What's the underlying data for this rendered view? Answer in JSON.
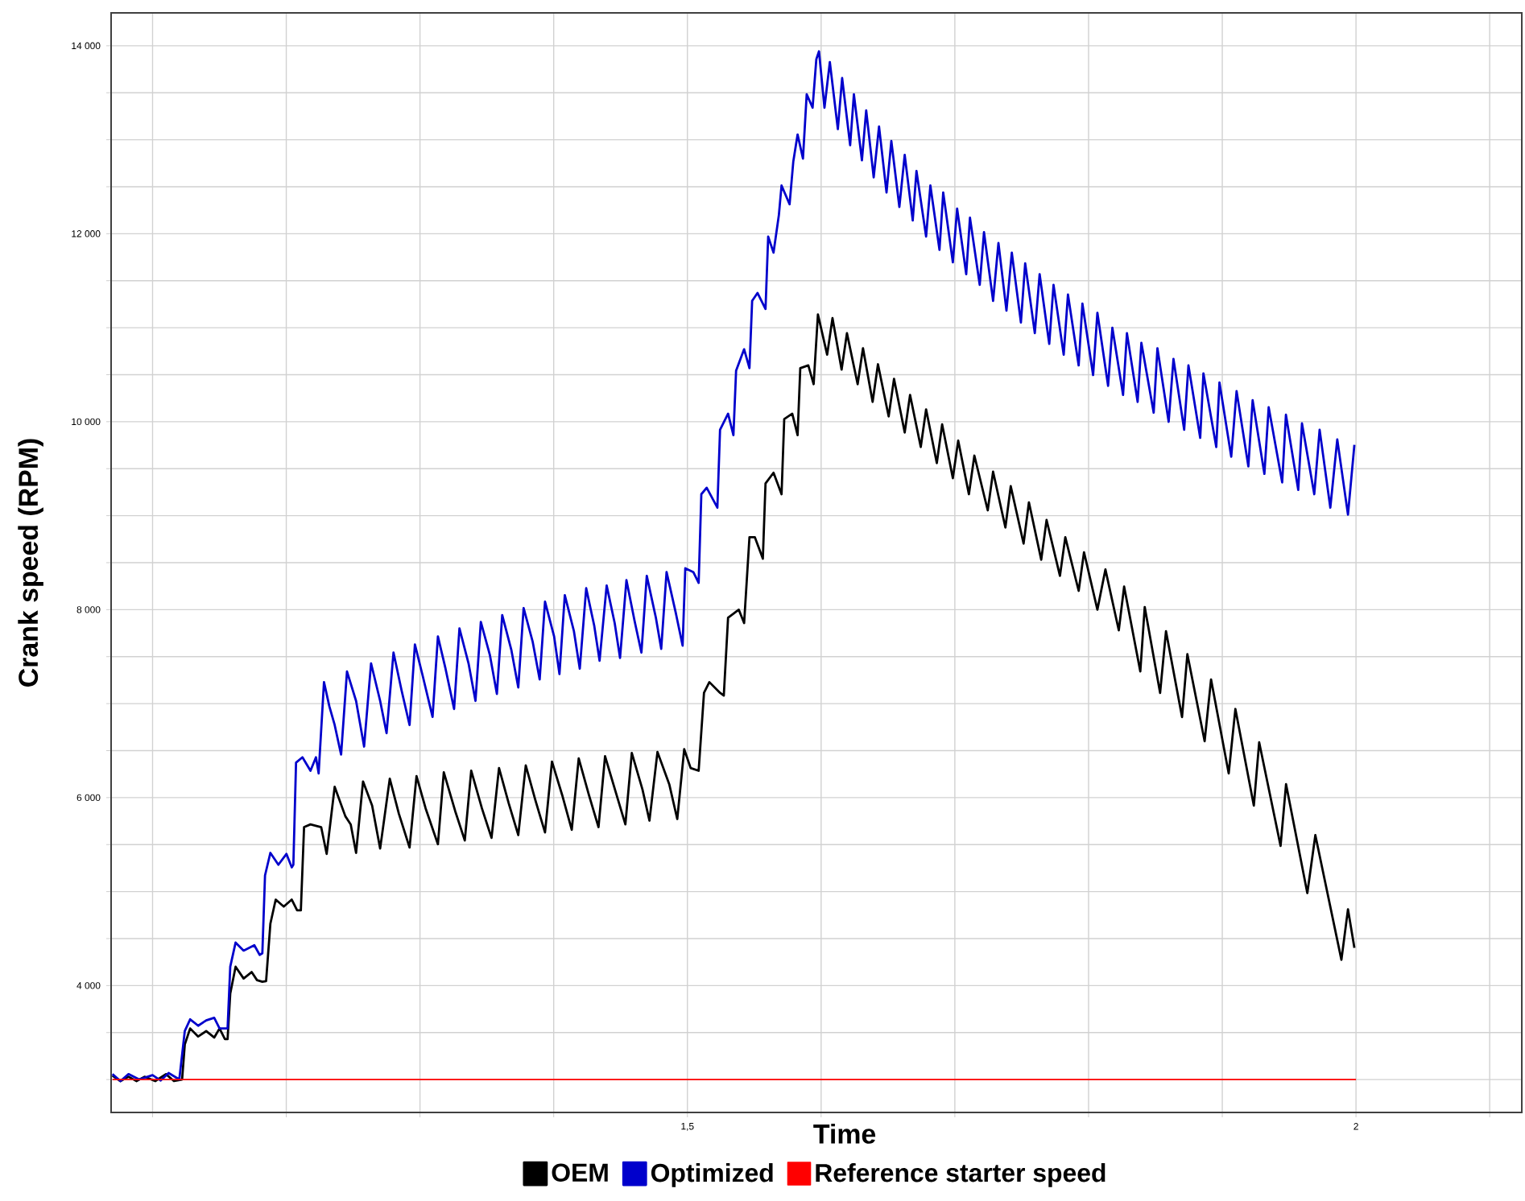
{
  "chart_data": {
    "type": "line",
    "xlabel": "Time",
    "ylabel": "Crank speed (RPM)",
    "grid": true,
    "legend": "bottom",
    "xlim": [
      1.069,
      2.124
    ],
    "ylim": [
      2650,
      14350
    ],
    "xticks": [
      {
        "value": 1.1,
        "label": null
      },
      {
        "value": 1.2,
        "label": null
      },
      {
        "value": 1.3,
        "label": null
      },
      {
        "value": 1.4,
        "label": null
      },
      {
        "value": 1.5,
        "label": "1,5"
      },
      {
        "value": 1.6,
        "label": null
      },
      {
        "value": 1.7,
        "label": null
      },
      {
        "value": 1.8,
        "label": null
      },
      {
        "value": 1.9,
        "label": null
      },
      {
        "value": 2,
        "label": "2"
      },
      {
        "value": 2.1,
        "label": null
      }
    ],
    "yticks": [
      {
        "value": 3000,
        "label": null
      },
      {
        "value": 3500,
        "label": null
      },
      {
        "value": 4000,
        "label": "4 000"
      },
      {
        "value": 4500,
        "label": null
      },
      {
        "value": 5000,
        "label": null
      },
      {
        "value": 5500,
        "label": null
      },
      {
        "value": 6000,
        "label": "6 000"
      },
      {
        "value": 6500,
        "label": null
      },
      {
        "value": 7000,
        "label": null
      },
      {
        "value": 7500,
        "label": null
      },
      {
        "value": 8000,
        "label": "8 000"
      },
      {
        "value": 8500,
        "label": null
      },
      {
        "value": 9000,
        "label": null
      },
      {
        "value": 9500,
        "label": null
      },
      {
        "value": 10000,
        "label": "10 000"
      },
      {
        "value": 10500,
        "label": null
      },
      {
        "value": 11000,
        "label": null
      },
      {
        "value": 11500,
        "label": null
      },
      {
        "value": 12000,
        "label": "12 000"
      },
      {
        "value": 12500,
        "label": null
      },
      {
        "value": 13000,
        "label": null
      },
      {
        "value": 13500,
        "label": null
      },
      {
        "value": 14000,
        "label": "14 000"
      }
    ],
    "series": [
      {
        "name": "OEM",
        "color": "#000000",
        "x": [
          1.07,
          1.076,
          1.082,
          1.088,
          1.094,
          1.102,
          1.11,
          1.116,
          1.1221,
          1.1241,
          1.1281,
          1.1341,
          1.1401,
          1.1461,
          1.1501,
          1.1541,
          1.1561,
          1.1581,
          1.1621,
          1.1681,
          1.1741,
          1.1781,
          1.1821,
          1.1849,
          1.1881,
          1.1921,
          1.1981,
          1.2041,
          1.2081,
          1.2109,
          1.2133,
          1.2181,
          1.2261,
          1.2302,
          1.2362,
          1.2442,
          1.2482,
          1.2522,
          1.2574,
          1.2642,
          1.2702,
          1.2774,
          1.2842,
          1.2922,
          1.2974,
          1.3042,
          1.3134,
          1.3178,
          1.3263,
          1.3335,
          1.3383,
          1.3463,
          1.3535,
          1.3591,
          1.3663,
          1.3735,
          1.3791,
          1.3863,
          1.3935,
          1.3987,
          1.4063,
          1.4135,
          1.4187,
          1.4263,
          1.4335,
          1.4384,
          1.4464,
          1.4536,
          1.4584,
          1.4664,
          1.4716,
          1.4776,
          1.4864,
          1.4924,
          1.4976,
          1.5024,
          1.5084,
          1.5124,
          1.5164,
          1.5244,
          1.5272,
          1.5304,
          1.5384,
          1.5424,
          1.5464,
          1.5504,
          1.5564,
          1.5584,
          1.5644,
          1.5704,
          1.5724,
          1.5784,
          1.5824,
          1.5844,
          1.5904,
          1.5944,
          1.5976,
          1.6045,
          1.6085,
          1.6153,
          1.6193,
          1.6273,
          1.6313,
          1.6385,
          1.6425,
          1.6505,
          1.6545,
          1.6625,
          1.6665,
          1.6745,
          1.6785,
          1.6865,
          1.6905,
          1.6985,
          1.7025,
          1.7105,
          1.7146,
          1.7246,
          1.7286,
          1.7378,
          1.7418,
          1.7514,
          1.7554,
          1.7646,
          1.7686,
          1.7786,
          1.7826,
          1.7926,
          1.7966,
          1.8066,
          1.8126,
          1.8226,
          1.8266,
          1.8387,
          1.842,
          1.8535,
          1.8579,
          1.8699,
          1.8739,
          1.8868,
          1.8916,
          1.9048,
          1.9098,
          1.9236,
          1.9276,
          1.9436,
          1.9477,
          1.9636,
          1.9696,
          1.9891,
          1.994,
          1.9988
        ],
        "values": [
          3041,
          2984,
          3030,
          2984,
          3030,
          2984,
          3058,
          2984,
          3001,
          3373,
          3544,
          3458,
          3516,
          3447,
          3544,
          3430,
          3430,
          3915,
          4201,
          4075,
          4144,
          4058,
          4041,
          4047,
          4658,
          4915,
          4841,
          4915,
          4801,
          4801,
          5686,
          5715,
          5686,
          5401,
          6115,
          5801,
          5715,
          5412,
          6172,
          5915,
          5458,
          6201,
          5829,
          5469,
          6229,
          5886,
          5504,
          6269,
          5858,
          5544,
          6286,
          5886,
          5572,
          6315,
          5943,
          5601,
          6343,
          5972,
          5629,
          6383,
          6029,
          5658,
          6418,
          6029,
          5686,
          6440,
          6058,
          5715,
          6475,
          6086,
          5755,
          6486,
          6143,
          5772,
          6515,
          6315,
          6286,
          7115,
          7229,
          7115,
          7086,
          7914,
          8000,
          7857,
          8771,
          8771,
          8542,
          9342,
          9457,
          9228,
          10028,
          10085,
          9856,
          10570,
          10599,
          10399,
          11142,
          10713,
          11102,
          10554,
          10942,
          10399,
          10782,
          10211,
          10611,
          10056,
          10456,
          9885,
          10285,
          9731,
          10131,
          9559,
          9971,
          9399,
          9799,
          9228,
          9639,
          9057,
          9468,
          8874,
          9314,
          8703,
          9142,
          8531,
          8954,
          8360,
          8771,
          8200,
          8611,
          8000,
          8428,
          7780,
          8245,
          7342,
          8028,
          7114,
          7771,
          6857,
          7526,
          6600,
          7257,
          6257,
          6943,
          5915,
          6588,
          5486,
          6143,
          4984,
          5601,
          4274,
          4812,
          4401
        ]
      },
      {
        "name": "Optimized",
        "color": "#0000cc",
        "x": [
          1.07,
          1.076,
          1.082,
          1.09,
          1.1,
          1.1061,
          1.112,
          1.12,
          1.1241,
          1.1281,
          1.1341,
          1.1401,
          1.1461,
          1.1501,
          1.1561,
          1.1581,
          1.1621,
          1.1681,
          1.1761,
          1.1801,
          1.1821,
          1.1841,
          1.1881,
          1.1941,
          1.2001,
          1.2041,
          1.2053,
          1.2073,
          1.2121,
          1.2181,
          1.2222,
          1.2242,
          1.2282,
          1.2322,
          1.2362,
          1.241,
          1.2454,
          1.2522,
          1.2582,
          1.2634,
          1.2702,
          1.275,
          1.2802,
          1.2862,
          1.2922,
          1.2962,
          1.3022,
          1.3094,
          1.3134,
          1.3191,
          1.3255,
          1.3295,
          1.3363,
          1.3415,
          1.3455,
          1.3523,
          1.3575,
          1.3615,
          1.3683,
          1.3735,
          1.3775,
          1.3843,
          1.3895,
          1.3935,
          1.4003,
          1.4043,
          1.4083,
          1.4151,
          1.4195,
          1.4243,
          1.4303,
          1.4343,
          1.4396,
          1.4456,
          1.4496,
          1.4544,
          1.4604,
          1.4656,
          1.4696,
          1.4764,
          1.4804,
          1.4844,
          1.4912,
          1.4964,
          1.4984,
          1.5044,
          1.5084,
          1.5104,
          1.5144,
          1.5224,
          1.5244,
          1.5304,
          1.5344,
          1.5364,
          1.5424,
          1.5464,
          1.5484,
          1.5524,
          1.5584,
          1.5604,
          1.5644,
          1.5684,
          1.5704,
          1.5764,
          1.5792,
          1.5824,
          1.5864,
          1.5892,
          1.5936,
          1.5964,
          1.5984,
          1.6025,
          1.6065,
          1.6125,
          1.6157,
          1.6217,
          1.6245,
          1.6305,
          1.6337,
          1.6393,
          1.6433,
          1.6489,
          1.6525,
          1.6585,
          1.6625,
          1.6685,
          1.6713,
          1.6785,
          1.6817,
          1.6885,
          1.6913,
          1.6985,
          1.7017,
          1.7085,
          1.7113,
          1.7186,
          1.7218,
          1.7286,
          1.7326,
          1.7386,
          1.7426,
          1.7494,
          1.7526,
          1.7598,
          1.7634,
          1.7706,
          1.7738,
          1.7814,
          1.7846,
          1.7926,
          1.7954,
          1.8034,
          1.8066,
          1.8146,
          1.8178,
          1.8258,
          1.8287,
          1.8367,
          1.8395,
          1.8487,
          1.8515,
          1.8599,
          1.8635,
          1.8715,
          1.8747,
          1.8835,
          1.8859,
          1.8955,
          1.8979,
          1.9067,
          1.9107,
          1.9195,
          1.9227,
          1.9315,
          1.9347,
          1.9448,
          1.9476,
          1.9568,
          1.9596,
          1.9688,
          1.9728,
          1.9808,
          1.986,
          1.994,
          1.9988
        ],
        "values": [
          3058,
          2984,
          3058,
          3001,
          3047,
          2990,
          3070,
          3001,
          3516,
          3641,
          3573,
          3630,
          3658,
          3544,
          3544,
          4201,
          4458,
          4372,
          4429,
          4327,
          4344,
          5172,
          5412,
          5286,
          5401,
          5258,
          5286,
          6372,
          6429,
          6286,
          6429,
          6258,
          7229,
          6972,
          6772,
          6458,
          7343,
          7029,
          6543,
          7429,
          7029,
          6686,
          7543,
          7143,
          6772,
          7629,
          7286,
          6858,
          7715,
          7372,
          6943,
          7800,
          7429,
          7029,
          7869,
          7515,
          7103,
          7943,
          7572,
          7172,
          8017,
          7657,
          7257,
          8085,
          7715,
          7315,
          8154,
          7772,
          7372,
          8228,
          7829,
          7457,
          8257,
          7857,
          7486,
          8314,
          7886,
          7543,
          8360,
          7915,
          7583,
          8400,
          7972,
          7617,
          8440,
          8400,
          8285,
          9228,
          9297,
          9085,
          9914,
          10085,
          9856,
          10542,
          10771,
          10570,
          11285,
          11370,
          11199,
          11970,
          11799,
          12199,
          12513,
          12313,
          12770,
          13056,
          12799,
          13484,
          13341,
          13856,
          13941,
          13341,
          13827,
          13113,
          13656,
          12942,
          13484,
          12782,
          13313,
          12599,
          13141,
          12439,
          12987,
          12285,
          12839,
          12142,
          12667,
          11970,
          12513,
          11828,
          12439,
          11696,
          12267,
          11570,
          12170,
          11456,
          12016,
          11285,
          11902,
          11182,
          11799,
          11056,
          11685,
          10942,
          11570,
          10828,
          11456,
          10713,
          11353,
          10599,
          11256,
          10496,
          11159,
          10382,
          10999,
          10285,
          10942,
          10211,
          10839,
          10096,
          10782,
          9999,
          10668,
          9914,
          10599,
          9828,
          10514,
          9731,
          10417,
          9628,
          10325,
          9525,
          10228,
          9445,
          10154,
          9354,
          10074,
          9274,
          9982,
          9228,
          9914,
          9085,
          9811,
          9011,
          9754
        ]
      },
      {
        "name": "Reference starter speed",
        "color": "#ff0000",
        "x": [
          1.07,
          2.0
        ],
        "values": [
          3000,
          3000
        ]
      }
    ]
  }
}
